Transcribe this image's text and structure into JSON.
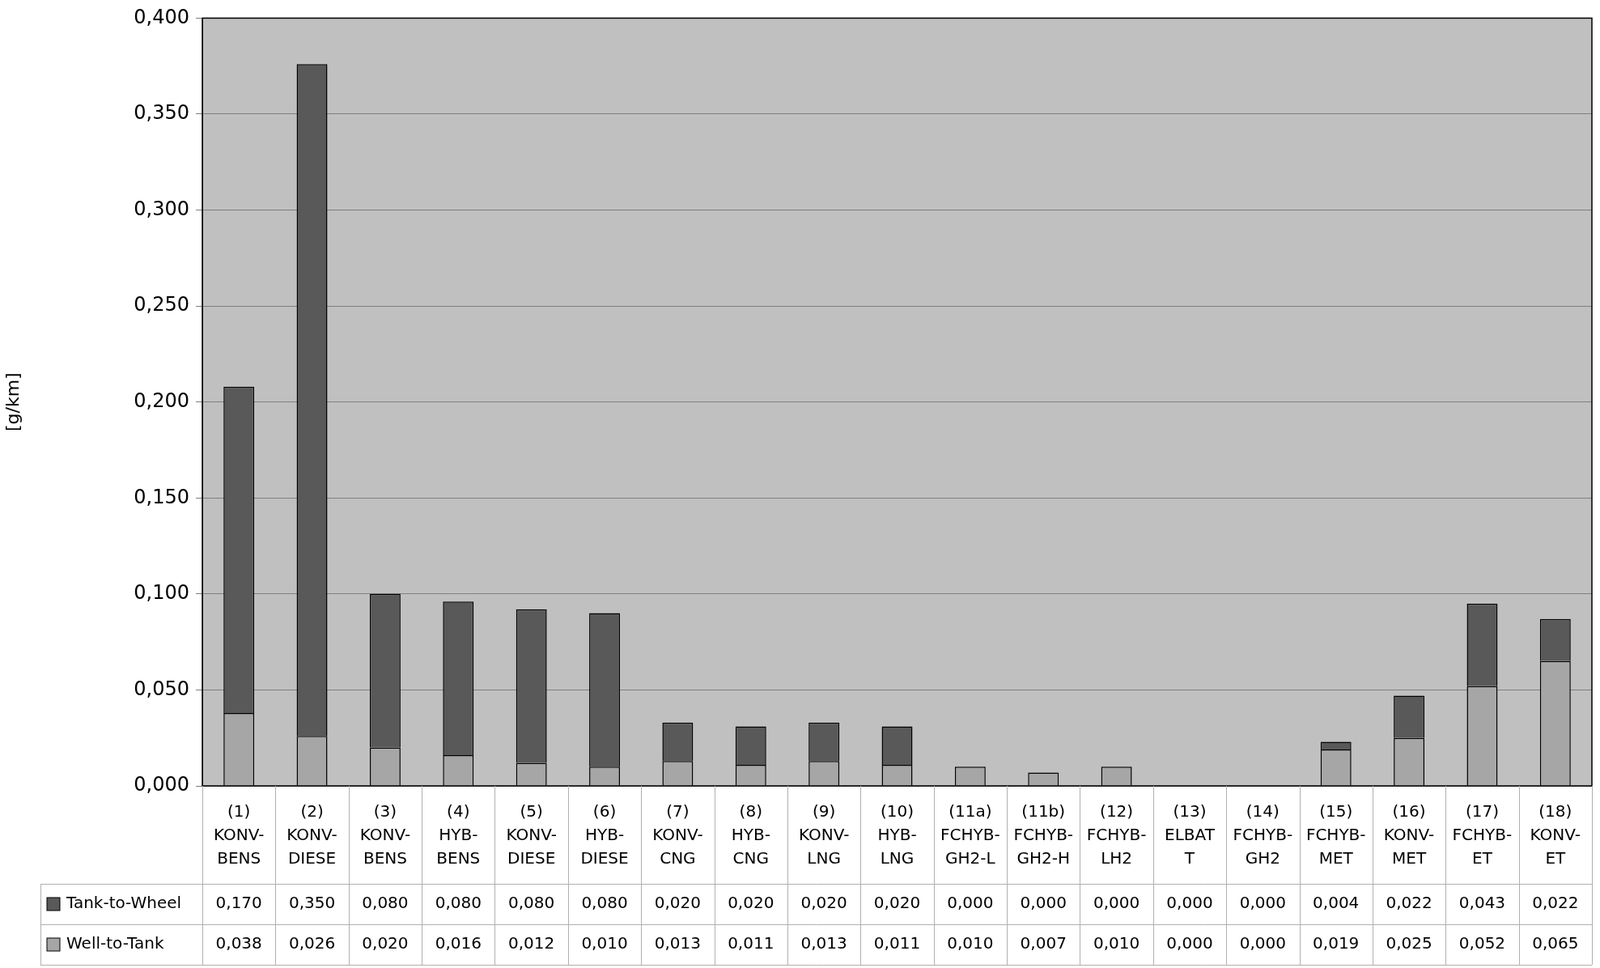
{
  "chart_data": {
    "type": "bar",
    "stacked": true,
    "grid": true,
    "data_labels": true,
    "y_label": "[g/km]",
    "categories": [
      [
        "(1)",
        "KONV-",
        "BENS"
      ],
      [
        "(2)",
        "KONV-",
        "DIESE"
      ],
      [
        "(3)",
        "KONV-",
        "BENS"
      ],
      [
        "(4)",
        "HYB-",
        "BENS"
      ],
      [
        "(5)",
        "KONV-",
        "DIESE"
      ],
      [
        "(6)",
        "HYB-",
        "DIESE"
      ],
      [
        "(7)",
        "KONV-",
        "CNG"
      ],
      [
        "(8)",
        "HYB-",
        "CNG"
      ],
      [
        "(9)",
        "KONV-",
        "LNG"
      ],
      [
        "(10)",
        "HYB-",
        "LNG"
      ],
      [
        "(11a)",
        "FCHYB-",
        "GH2-L"
      ],
      [
        "(11b)",
        "FCHYB-",
        "GH2-H"
      ],
      [
        "(12)",
        "FCHYB-",
        "LH2"
      ],
      [
        "(13)",
        "ELBAT",
        "T"
      ],
      [
        "(14)",
        "FCHYB-",
        "GH2"
      ],
      [
        "(15)",
        "FCHYB-",
        "MET"
      ],
      [
        "(16)",
        "KONV-",
        "MET"
      ],
      [
        "(17)",
        "FCHYB-",
        "ET"
      ],
      [
        "(18)",
        "KONV-",
        "ET"
      ]
    ],
    "series": [
      {
        "name": "Tank-to-Wheel",
        "color": "#595959",
        "values": [
          0.17,
          0.35,
          0.08,
          0.08,
          0.08,
          0.08,
          0.02,
          0.02,
          0.02,
          0.02,
          0.0,
          0.0,
          0.0,
          0.0,
          0.0,
          0.004,
          0.022,
          0.043,
          0.022
        ],
        "value_labels": [
          "0,170",
          "0,350",
          "0,080",
          "0,080",
          "0,080",
          "0,080",
          "0,020",
          "0,020",
          "0,020",
          "0,020",
          "0,000",
          "0,000",
          "0,000",
          "0,000",
          "0,000",
          "0,004",
          "0,022",
          "0,043",
          "0,022"
        ]
      },
      {
        "name": "Well-to-Tank",
        "color": "#a6a6a6",
        "values": [
          0.038,
          0.026,
          0.02,
          0.016,
          0.012,
          0.01,
          0.013,
          0.011,
          0.013,
          0.011,
          0.01,
          0.007,
          0.01,
          0.0,
          0.0,
          0.019,
          0.025,
          0.052,
          0.065
        ],
        "value_labels": [
          "0,038",
          "0,026",
          "0,020",
          "0,016",
          "0,012",
          "0,010",
          "0,013",
          "0,011",
          "0,013",
          "0,011",
          "0,010",
          "0,007",
          "0,010",
          "0,000",
          "0,000",
          "0,019",
          "0,025",
          "0,052",
          "0,065"
        ]
      }
    ],
    "ylim": [
      0,
      0.4
    ],
    "yticks": [
      {
        "value": 0,
        "label": "0,000"
      },
      {
        "value": 0.05,
        "label": "0,050"
      },
      {
        "value": 0.1,
        "label": "0,100"
      },
      {
        "value": 0.15,
        "label": "0,150"
      },
      {
        "value": 0.2,
        "label": "0,200"
      },
      {
        "value": 0.25,
        "label": "0,250"
      },
      {
        "value": 0.3,
        "label": "0,300"
      },
      {
        "value": 0.35,
        "label": "0,350"
      },
      {
        "value": 0.4,
        "label": "0,400"
      }
    ]
  }
}
